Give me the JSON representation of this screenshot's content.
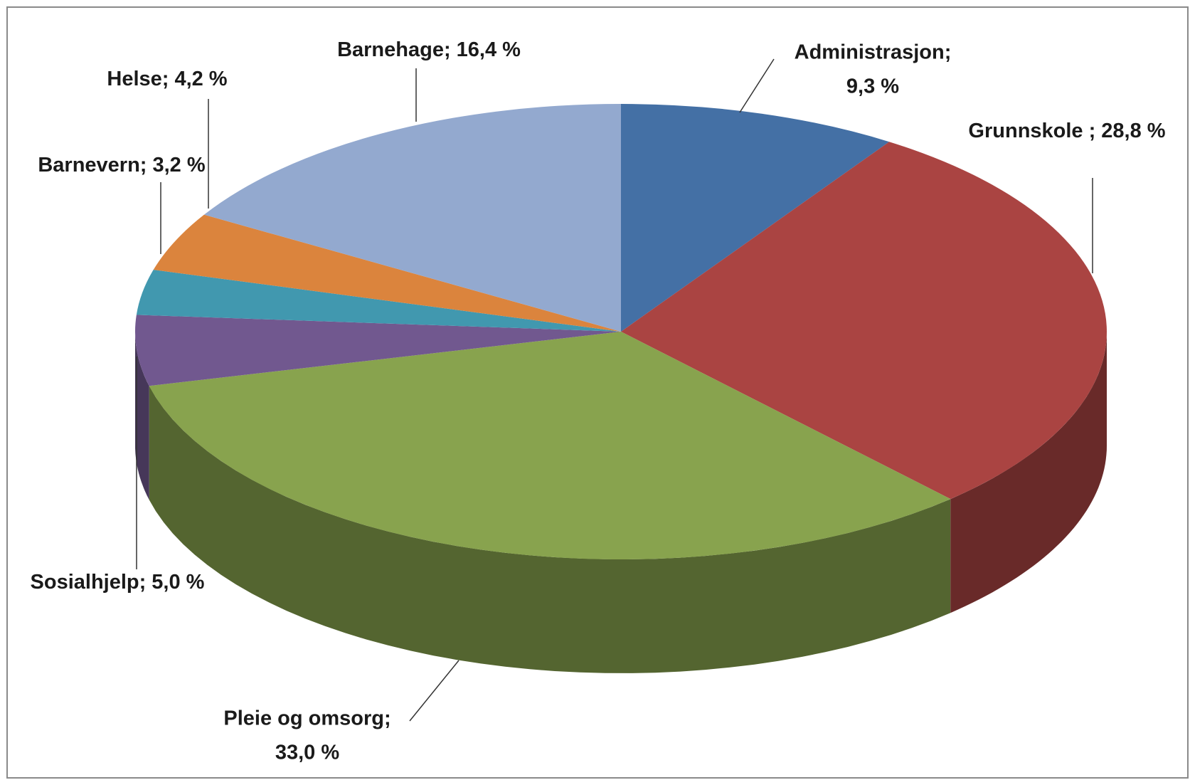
{
  "chart_data": {
    "type": "pie3d",
    "categories": [
      "Administrasjon;",
      "Grunnskole ;",
      "Pleie og omsorg;",
      "Sosialhjelp;",
      "Barnevern;",
      "Helse;",
      "Barnehage;"
    ],
    "values": [
      9.3,
      28.8,
      33.0,
      5.0,
      3.2,
      4.2,
      16.4
    ],
    "value_labels": [
      "9,3 %",
      "28,8 %",
      "33,0 %",
      "5,0 %",
      "3,2 %",
      "4,2 %",
      "16,4 %"
    ],
    "colors": [
      "#4470a5",
      "#aa4442",
      "#88a34e",
      "#71588f",
      "#4198af",
      "#db843d",
      "#93a9cf"
    ]
  }
}
